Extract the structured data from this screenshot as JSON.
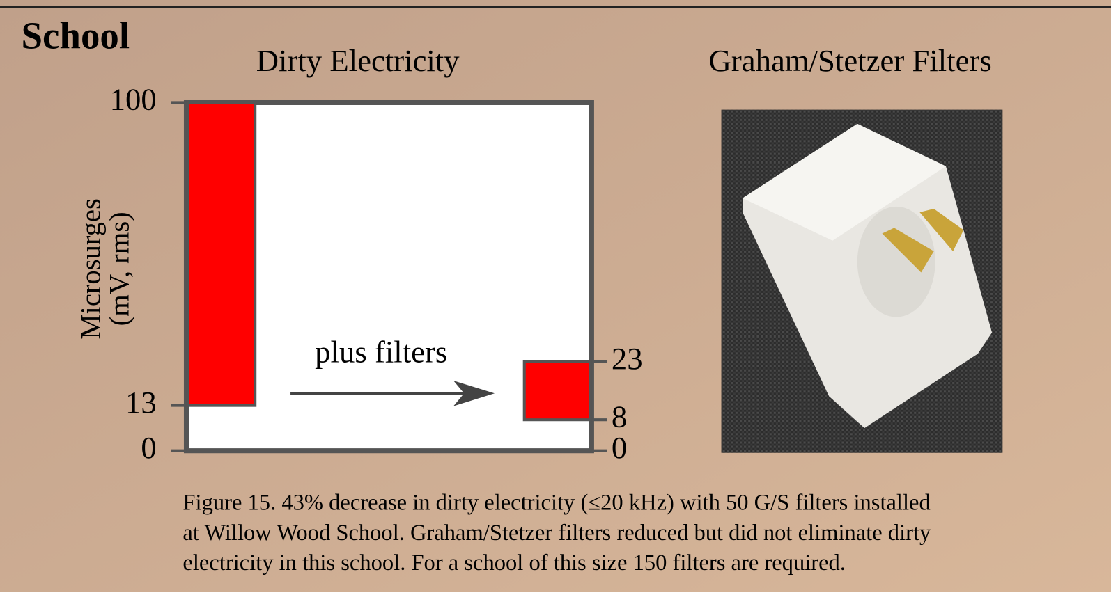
{
  "heading": "School",
  "chart_data": {
    "type": "range-bar",
    "title": "Dirty Electricity",
    "ylabel": [
      "Microsurges",
      "(mV, rms)"
    ],
    "annotation": "plus filters",
    "color": "#ff0000",
    "bars": [
      {
        "low": 13,
        "high": 100,
        "axis": "y"
      },
      {
        "low": 8,
        "high": 23,
        "axis": "y2"
      }
    ],
    "ylim": [
      0,
      100
    ],
    "yticks": [
      0,
      13,
      100
    ],
    "y2lim": [
      0,
      90
    ],
    "y2ticks": [
      0,
      8,
      23
    ]
  },
  "photo": {
    "title": "Graham/Stetzer Filters"
  },
  "caption": [
    "Figure 15.  43% decrease in dirty electricity (≤20 kHz) with 50 G/S filters installed",
    "at Willow Wood School.  Graham/Stetzer filters reduced but did not eliminate dirty",
    "electricity in this school.  For a school of this size 150 filters are required."
  ]
}
